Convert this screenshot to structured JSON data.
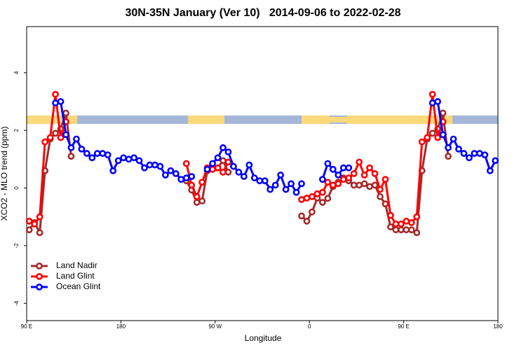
{
  "chart_data": {
    "type": "line",
    "title": "30N-35N January (Ver 10)   2014-09-06 to 2022-02-28",
    "xlabel": "Longitude",
    "ylabel": "XCO2 - MLO trend (ppm)",
    "xlim": [
      90,
      540
    ],
    "ylim": [
      -4.6,
      5.6
    ],
    "xticks": [
      {
        "value": 90,
        "label": "90 E"
      },
      180,
      {
        "value": 270,
        "label": "90 W"
      },
      {
        "value": 360,
        "label": "0"
      },
      {
        "value": 450,
        "label": "90 E"
      },
      {
        "value": 540,
        "label": "180"
      }
    ],
    "yticks": [
      -4,
      -2,
      0,
      2,
      4
    ],
    "legend": "bottomleft",
    "series": [
      {
        "name": "Land Nadir",
        "color": "#a52a2a",
        "x": [
          92.5,
          97.5,
          102.5,
          107.5,
          112.5,
          117.5,
          122.5,
          127.5,
          132.5,
          null,
          242.5,
          247.5,
          252.5,
          257.5,
          262.5,
          267.5,
          272.5,
          277.5,
          282.5,
          null,
          352.5,
          357.5,
          362.5,
          367.5,
          372.5,
          377.5,
          382.5,
          387.5,
          392.5,
          397.5,
          402.5,
          407.5,
          412.5,
          417.5,
          422.5,
          427.5,
          432.5,
          437.5,
          442.5,
          447.5,
          452.5,
          457.5,
          462.5,
          467.5,
          472.5,
          477.5,
          482.5,
          487.5,
          492.5
        ],
        "values": [
          -1.45,
          -1.2,
          -1.55,
          0.6,
          1.7,
          1.9,
          2.05,
          2.6,
          1.1,
          null,
          0.25,
          -0.07,
          -0.5,
          -0.45,
          0.6,
          0.65,
          0.7,
          0.95,
          0.55,
          null,
          -0.97,
          -1.15,
          -0.83,
          -0.35,
          -0.5,
          -0.36,
          0.05,
          0.2,
          0.35,
          0.25,
          0.1,
          0.1,
          0.15,
          0.05,
          0.1,
          -0.3,
          -0.55,
          -1.35,
          -1.45,
          -1.45,
          -1.45,
          -1.45,
          -1.55,
          0.6,
          1.7,
          1.9,
          2.05,
          2.6,
          1.1
        ]
      },
      {
        "name": "Land Glint",
        "color": "#ff0000",
        "x": [
          92.5,
          97.5,
          102.5,
          107.5,
          112.5,
          117.5,
          122.5,
          127.5,
          null,
          242.5,
          247.5,
          252.5,
          257.5,
          262.5,
          267.5,
          272.5,
          277.5,
          282.5,
          null,
          352.5,
          357.5,
          362.5,
          367.5,
          372.5,
          377.5,
          382.5,
          387.5,
          392.5,
          397.5,
          402.5,
          407.5,
          412.5,
          417.5,
          422.5,
          427.5,
          432.5,
          437.5,
          442.5,
          447.5,
          452.5,
          457.5,
          462.5,
          467.5,
          472.5,
          477.5,
          482.5,
          487.5
        ],
        "values": [
          -1.15,
          -1.25,
          -1.0,
          1.6,
          1.75,
          3.25,
          1.75,
          2.3,
          null,
          0.85,
          0.1,
          -0.3,
          0.2,
          0.7,
          0.65,
          0.7,
          0.55,
          0.9,
          null,
          -0.4,
          -0.35,
          -0.3,
          -0.2,
          -0.15,
          0.2,
          0.1,
          0.15,
          0.3,
          0.35,
          0.5,
          0.9,
          0.45,
          0.7,
          0.5,
          -0.05,
          0.3,
          -0.95,
          -1.25,
          -1.25,
          -1.15,
          -1.2,
          -1.0,
          1.6,
          1.75,
          3.25,
          1.75,
          2.3
        ]
      },
      {
        "name": "Ocean Glint",
        "color": "#0000ff",
        "x": [
          117.5,
          122.5,
          127.5,
          132.5,
          137.5,
          142.5,
          147.5,
          152.5,
          157.5,
          162.5,
          167.5,
          172.5,
          177.5,
          182.5,
          187.5,
          192.5,
          197.5,
          202.5,
          207.5,
          212.5,
          217.5,
          222.5,
          227.5,
          232.5,
          237.5,
          242.5,
          247.5,
          null,
          262.5,
          267.5,
          272.5,
          277.5,
          282.5,
          287.5,
          292.5,
          297.5,
          302.5,
          307.5,
          312.5,
          317.5,
          322.5,
          327.5,
          332.5,
          337.5,
          342.5,
          347.5,
          352.5,
          null,
          372.5,
          377.5,
          382.5,
          387.5,
          392.5,
          397.5,
          null,
          477.5,
          482.5,
          487.5,
          492.5,
          497.5,
          502.5,
          507.5,
          512.5,
          517.5,
          522.5,
          527.5,
          532.5,
          537.5
        ],
        "values": [
          2.95,
          3.0,
          1.85,
          1.4,
          1.7,
          1.35,
          1.2,
          1.05,
          1.2,
          1.2,
          1.15,
          0.6,
          0.95,
          1.05,
          1.0,
          1.05,
          0.95,
          0.7,
          0.8,
          0.8,
          0.75,
          0.45,
          0.6,
          0.5,
          0.3,
          0.35,
          0.4,
          null,
          0.65,
          0.85,
          1.05,
          1.4,
          1.25,
          0.75,
          0.55,
          0.4,
          0.8,
          0.35,
          0.25,
          0.25,
          -0.05,
          0.1,
          0.45,
          -0.05,
          0.15,
          -0.15,
          0.15,
          null,
          0.3,
          0.85,
          0.65,
          0.45,
          0.7,
          0.7,
          null,
          2.95,
          3.0,
          1.85,
          1.4,
          1.7,
          1.35,
          1.2,
          1.05,
          1.2,
          1.2,
          1.15,
          0.6,
          0.95
        ]
      }
    ]
  }
}
